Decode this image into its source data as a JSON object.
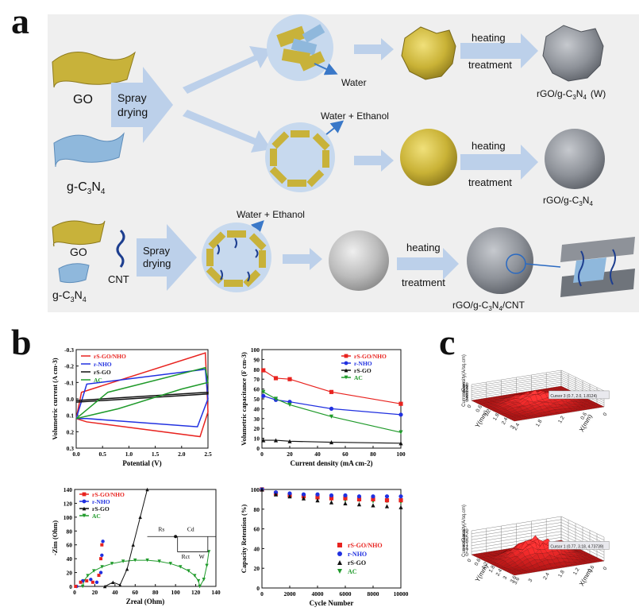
{
  "panels": {
    "a": "a",
    "b": "b",
    "c": "c"
  },
  "schematic": {
    "go": "GO",
    "gcn_prefix": "g-C",
    "gcn_sub1": "3",
    "gcn_n": "N",
    "gcn_sub2": "4",
    "cnt": "CNT",
    "spray_line1": "Spray",
    "spray_line2": "drying",
    "water": "Water",
    "water_ethanol": "Water + Ethanol",
    "heating_line1": "heating",
    "heating_line2": "treatment",
    "rgo_prefix": "rGO/g-C",
    "suffix_w": "(W)",
    "suffix_cnt": "/CNT"
  },
  "colors": {
    "go": "#c8b23a",
    "gcn": "#8fb8dc",
    "circle": "#c7d9ee",
    "arrow": "#bcd0ea",
    "sphere_gold": "#c9b236",
    "sphere_grey": "#8e9299",
    "sphere_light": "#bcbcbc",
    "red": "#e8231f",
    "blue": "#2030e0",
    "black": "#111111",
    "green": "#1f9a2a"
  },
  "chart_data": [
    {
      "type": "line",
      "panel": "b-cv",
      "ylabel": "Volumetric current (A cm-3)",
      "xlabel": "Potential (V)",
      "xlim": [
        0,
        2.5
      ],
      "ylim": [
        -0.3,
        0.3
      ],
      "xticks": [
        "0.0",
        "0.5",
        "1.0",
        "1.5",
        "2.0",
        "2.5"
      ],
      "yticks": [
        "0.3",
        "0.2",
        "0.1",
        "0.0",
        "-0.1",
        "-0.2",
        "-0.3"
      ],
      "legend": [
        "rS-GO/NHO",
        "r-NHO",
        "rS-GO",
        "AC"
      ]
    },
    {
      "type": "line",
      "panel": "b-rate",
      "ylabel": "Volumetric capacitance (F cm-3)",
      "xlabel": "Current density (mA cm-2)",
      "xlim": [
        0,
        100
      ],
      "ylim": [
        0,
        100
      ],
      "xticks": [
        "0",
        "20",
        "40",
        "60",
        "80",
        "100"
      ],
      "yticks": [
        "0",
        "10",
        "20",
        "30",
        "40",
        "50",
        "60",
        "70",
        "80",
        "90",
        "100"
      ],
      "x": [
        1,
        10,
        20,
        50,
        100
      ],
      "series": [
        {
          "name": "rS-GO/NHO",
          "values": [
            79,
            71,
            70,
            57,
            45
          ]
        },
        {
          "name": "r-NHO",
          "values": [
            53,
            49,
            47,
            40,
            34
          ]
        },
        {
          "name": "rS-GO",
          "values": [
            8,
            8,
            7,
            6,
            5
          ]
        },
        {
          "name": "AC",
          "values": [
            57,
            50,
            44,
            32,
            16
          ]
        }
      ]
    },
    {
      "type": "scatter",
      "panel": "b-eis",
      "ylabel": "-Zim (Ohm)",
      "xlabel": "Zreal (Ohm)",
      "xlim": [
        0,
        140
      ],
      "ylim": [
        0,
        140
      ],
      "xticks": [
        "0",
        "20",
        "40",
        "60",
        "80",
        "100",
        "120",
        "140"
      ],
      "yticks": [
        "0",
        "20",
        "40",
        "60",
        "80",
        "100",
        "120",
        "140"
      ],
      "legend": [
        "rS-GO/NHO",
        "r-NHO",
        "rS-GO",
        "AC"
      ],
      "circuit": {
        "rs": "Rs",
        "cd": "Cd",
        "rct": "Rct",
        "w": "W"
      }
    },
    {
      "type": "scatter",
      "panel": "b-cycle",
      "ylabel": "Capacity Retention (%)",
      "xlabel": "Cycle Number",
      "xlim": [
        0,
        10000
      ],
      "ylim": [
        0,
        100
      ],
      "xticks": [
        "0",
        "2000",
        "4000",
        "6000",
        "8000",
        "10000"
      ],
      "yticks": [
        "0",
        "20",
        "40",
        "60",
        "80",
        "100"
      ],
      "x": [
        0,
        1000,
        2000,
        3000,
        4000,
        5000,
        6000,
        7000,
        8000,
        9000,
        10000
      ],
      "series": [
        {
          "name": "rS-GO/NHO",
          "values": [
            100,
            96,
            94,
            93,
            92,
            91,
            91,
            90,
            90,
            89,
            89
          ]
        },
        {
          "name": "r-NHO",
          "values": [
            100,
            97,
            96,
            95,
            95,
            94,
            94,
            93,
            93,
            93,
            93
          ]
        },
        {
          "name": "rS-GO",
          "values": [
            100,
            95,
            93,
            91,
            89,
            87,
            86,
            85,
            84,
            83,
            82
          ]
        },
        {
          "name": "AC",
          "values": [
            100,
            96,
            94,
            92,
            91,
            90,
            89,
            89,
            88,
            88,
            87
          ]
        }
      ]
    },
    {
      "type": "heatmap",
      "panel": "c-top",
      "zlabel": "CurrentDensity(A/sq.cm)",
      "zticks": [
        "0",
        "2",
        "4",
        "6",
        "8",
        "10",
        "12",
        "14",
        "16",
        "18"
      ],
      "xlabel": "X(mm)",
      "ylabel": "Y(mm)",
      "xticks": [
        "0",
        "0.6",
        "1.2",
        "1.8",
        "2.4"
      ],
      "yticks": [
        "0",
        "0.6",
        "1.2",
        "1.8",
        "2.4",
        "3"
      ],
      "cursor": "Cursor 3 (0.7, 2.0, 1.8124)"
    },
    {
      "type": "heatmap",
      "panel": "c-bottom",
      "zlabel": "CurrentDensity(A/sq.cm)",
      "zticks": [
        "0",
        "7",
        "14",
        "21",
        "28",
        "35",
        "42",
        "49"
      ],
      "xlabel": "X(mm)",
      "ylabel": "Y(mm)",
      "xticks": [
        "0",
        "0.6",
        "1.2",
        "1.8",
        "2.4",
        "3",
        "3.6"
      ],
      "yticks": [
        "0",
        "0.6",
        "1.2",
        "1.8",
        "2.4",
        "3",
        "3.6"
      ],
      "cursor": "Cursor 1 (0.77, 3.18, 4.73739)"
    }
  ]
}
